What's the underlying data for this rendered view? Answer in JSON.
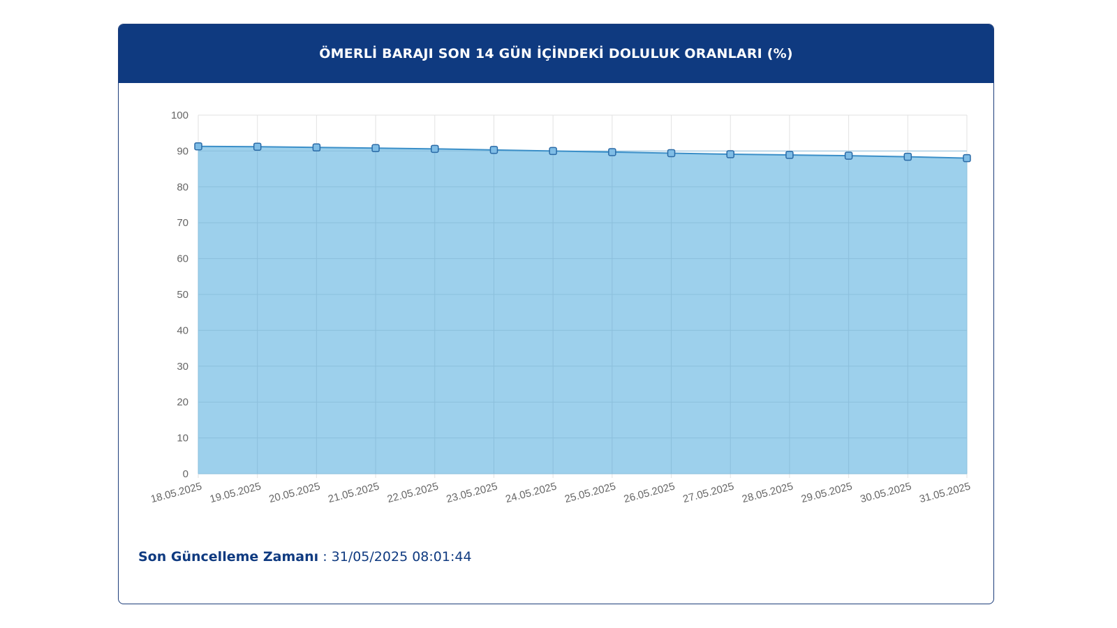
{
  "chart_data": {
    "type": "area",
    "title": "ÖMERLİ BARAJI SON 14 GÜN İÇİNDEKİ DOLULUK ORANLARI (%)",
    "categories": [
      "18.05.2025",
      "19.05.2025",
      "20.05.2025",
      "21.05.2025",
      "22.05.2025",
      "23.05.2025",
      "24.05.2025",
      "25.05.2025",
      "26.05.2025",
      "27.05.2025",
      "28.05.2025",
      "29.05.2025",
      "30.05.2025",
      "31.05.2025"
    ],
    "values": [
      91.3,
      91.2,
      91.0,
      90.8,
      90.6,
      90.3,
      90.0,
      89.7,
      89.4,
      89.1,
      88.9,
      88.7,
      88.4,
      88.0
    ],
    "color": "#3b8fc8",
    "fill": "#9dd0ec",
    "ylim": [
      0,
      100
    ],
    "yticks": [
      0,
      10,
      20,
      30,
      40,
      50,
      60,
      70,
      80,
      90,
      100
    ],
    "grid": true
  },
  "footer": {
    "label": "Son Güncelleme Zamanı",
    "value": ": 31/05/2025 08:01:44"
  }
}
